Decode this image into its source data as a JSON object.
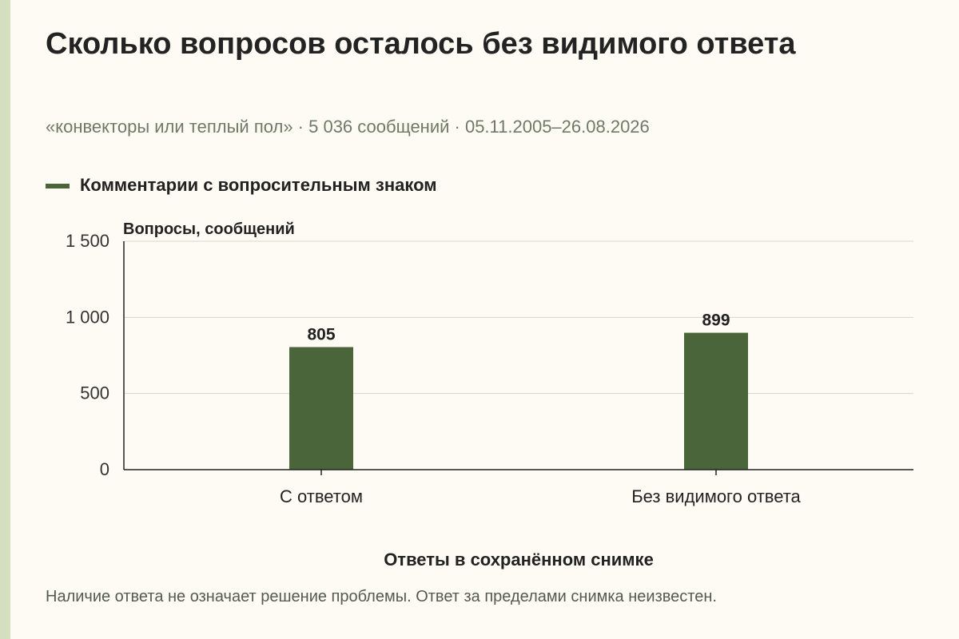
{
  "title": "Сколько вопросов осталось без видимого ответа",
  "subtitle": "«конвекторы или теплый пол» · 5 036 сообщений · 05.11.2005–26.08.2026",
  "footnote": "Наличие ответа не означает решение проблемы. Ответ за пределами снимка неизвестен.",
  "colors": {
    "bar": "#4a653a",
    "background": "#fdfbf3",
    "accent_stripe": "#d3dfbf",
    "grid": "#d6d6d0",
    "axis": "#222222"
  },
  "chart_data": {
    "type": "bar",
    "categories": [
      "С ответом",
      "Без видимого ответа"
    ],
    "series": [
      {
        "name": "Комментарии с вопросительным знаком",
        "values": [
          805,
          899
        ]
      }
    ],
    "data_labels": [
      "805",
      "899"
    ],
    "xlabel": "Ответы в сохранённом снимке",
    "ylabel": "Вопросы, сообщений",
    "ylim": [
      0,
      1500
    ],
    "yticks": [
      0,
      500,
      1000,
      1500
    ],
    "ytick_labels": [
      "0",
      "500",
      "1 000",
      "1 500"
    ],
    "grid": true,
    "legend_position": "top-left"
  }
}
